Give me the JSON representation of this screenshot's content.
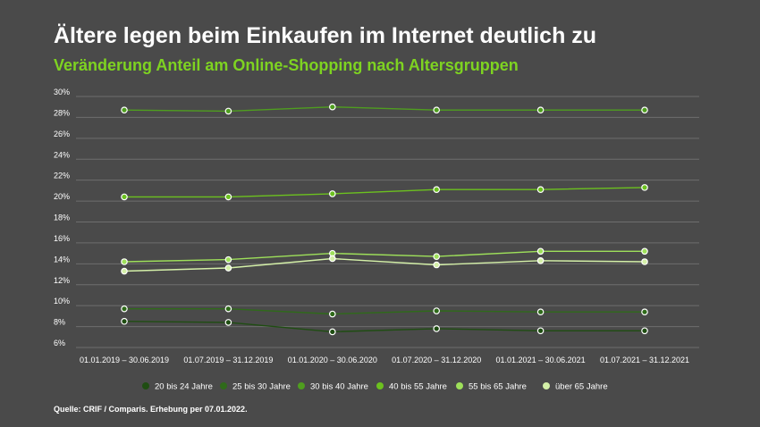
{
  "title": "Ältere legen beim Einkaufen im Internet deutlich zu",
  "subtitle": "Veränderung Anteil am Online-Shopping nach Altersgruppen",
  "source": "Quelle: CRIF / Comparis. Erhebung per 07.01.2022.",
  "chart_data": {
    "type": "line",
    "categories": [
      "01.01.2019 – 30.06.2019",
      "01.07.2019 – 31.12.2019",
      "01.01.2020 – 30.06.2020",
      "01.07.2020 – 31.12.2020",
      "01.01.2021 – 30.06.2021",
      "01.07.2021 – 31.12.2021"
    ],
    "ylim": [
      6,
      30
    ],
    "yticks": [
      "6%",
      "8%",
      "10%",
      "12%",
      "14%",
      "16%",
      "18%",
      "20%",
      "22%",
      "24%",
      "26%",
      "28%",
      "30%"
    ],
    "grid": true,
    "legend_position": "bottom",
    "series": [
      {
        "name": "20 bis 24 Jahre",
        "color": "#1f4d12",
        "values": [
          8.5,
          8.4,
          7.5,
          7.8,
          7.6,
          7.6
        ]
      },
      {
        "name": "25 bis 30 Jahre",
        "color": "#2f6a1a",
        "values": [
          9.7,
          9.7,
          9.2,
          9.5,
          9.4,
          9.4
        ]
      },
      {
        "name": "30 bis 40 Jahre",
        "color": "#4f9e1f",
        "values": [
          28.7,
          28.6,
          29.0,
          28.7,
          28.7,
          28.7
        ]
      },
      {
        "name": "40 bis 55 Jahre",
        "color": "#6cc11f",
        "values": [
          20.4,
          20.4,
          20.7,
          21.1,
          21.1,
          21.3
        ]
      },
      {
        "name": "55 bis 65 Jahre",
        "color": "#9ee05a",
        "values": [
          14.2,
          14.4,
          15.0,
          14.7,
          15.2,
          15.2
        ]
      },
      {
        "name": "über 65 Jahre",
        "color": "#d4f0a8",
        "values": [
          13.3,
          13.6,
          14.5,
          13.9,
          14.3,
          14.2
        ]
      }
    ]
  }
}
